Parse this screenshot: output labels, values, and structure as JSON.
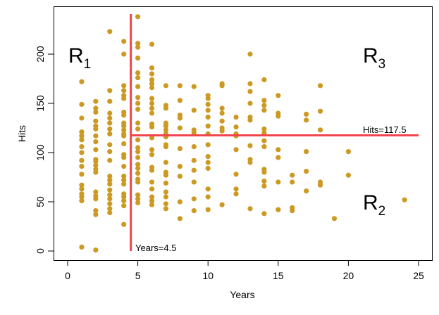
{
  "chart_data": {
    "type": "scatter",
    "title": "",
    "xlabel": "Years",
    "ylabel": "Hits",
    "xlim": [
      -1,
      26
    ],
    "ylim": [
      -8,
      250
    ],
    "xticks": [
      0,
      5,
      10,
      15,
      20,
      25
    ],
    "yticks": [
      0,
      50,
      100,
      150,
      200
    ],
    "xtick_labels": [
      "0",
      "5",
      "10",
      "15",
      "20",
      "25"
    ],
    "ytick_labels": [
      "0",
      "50",
      "100",
      "150",
      "200"
    ],
    "grid": false,
    "point_color": "#CC9A22",
    "split_color": "#F0454B",
    "splits": {
      "vertical": {
        "variable": "Years",
        "value": 4.5,
        "label": "Years=4.5"
      },
      "horizontal": {
        "variable": "Hits",
        "value": 117.5,
        "label": "Hits=117.5"
      }
    },
    "regions": [
      {
        "name": "R",
        "sub": "1"
      },
      {
        "name": "R",
        "sub": "2"
      },
      {
        "name": "R",
        "sub": "3"
      }
    ],
    "points": [
      [
        1,
        172
      ],
      [
        1,
        149
      ],
      [
        1,
        135
      ],
      [
        1,
        121
      ],
      [
        1,
        117
      ],
      [
        1,
        113
      ],
      [
        1,
        106
      ],
      [
        1,
        100
      ],
      [
        1,
        92
      ],
      [
        1,
        86
      ],
      [
        1,
        78
      ],
      [
        1,
        67
      ],
      [
        1,
        63
      ],
      [
        1,
        58
      ],
      [
        1,
        55
      ],
      [
        1,
        51
      ],
      [
        1,
        4
      ],
      [
        2,
        152
      ],
      [
        2,
        145
      ],
      [
        2,
        141
      ],
      [
        2,
        132
      ],
      [
        2,
        127
      ],
      [
        2,
        124
      ],
      [
        2,
        117
      ],
      [
        2,
        111
      ],
      [
        2,
        103
      ],
      [
        2,
        93
      ],
      [
        2,
        91
      ],
      [
        2,
        87
      ],
      [
        2,
        83
      ],
      [
        2,
        80
      ],
      [
        2,
        60
      ],
      [
        2,
        56
      ],
      [
        2,
        53
      ],
      [
        2,
        41
      ],
      [
        2,
        37
      ],
      [
        2,
        1
      ],
      [
        3,
        223
      ],
      [
        3,
        163
      ],
      [
        3,
        152
      ],
      [
        3,
        140
      ],
      [
        3,
        135
      ],
      [
        3,
        130
      ],
      [
        3,
        124
      ],
      [
        3,
        119
      ],
      [
        3,
        108
      ],
      [
        3,
        101
      ],
      [
        3,
        92
      ],
      [
        3,
        76
      ],
      [
        3,
        72
      ],
      [
        3,
        68
      ],
      [
        3,
        62
      ],
      [
        3,
        57
      ],
      [
        3,
        53
      ],
      [
        3,
        48
      ],
      [
        3,
        43
      ],
      [
        3,
        39
      ],
      [
        4,
        213
      ],
      [
        4,
        200
      ],
      [
        4,
        168
      ],
      [
        4,
        163
      ],
      [
        4,
        158
      ],
      [
        4,
        155
      ],
      [
        4,
        141
      ],
      [
        4,
        138
      ],
      [
        4,
        130
      ],
      [
        4,
        127
      ],
      [
        4,
        123
      ],
      [
        4,
        119
      ],
      [
        4,
        117
      ],
      [
        4,
        109
      ],
      [
        4,
        98
      ],
      [
        4,
        95
      ],
      [
        4,
        86
      ],
      [
        4,
        76
      ],
      [
        4,
        72
      ],
      [
        4,
        68
      ],
      [
        4,
        58
      ],
      [
        4,
        55
      ],
      [
        4,
        51
      ],
      [
        4,
        46
      ],
      [
        4,
        27
      ],
      [
        5,
        238
      ],
      [
        5,
        211
      ],
      [
        5,
        207
      ],
      [
        5,
        196
      ],
      [
        5,
        181
      ],
      [
        5,
        176
      ],
      [
        5,
        167
      ],
      [
        5,
        156
      ],
      [
        5,
        150
      ],
      [
        5,
        144
      ],
      [
        5,
        130
      ],
      [
        5,
        124
      ],
      [
        5,
        113
      ],
      [
        5,
        105
      ],
      [
        5,
        101
      ],
      [
        5,
        95
      ],
      [
        5,
        88
      ],
      [
        5,
        84
      ],
      [
        5,
        79
      ],
      [
        5,
        73
      ],
      [
        5,
        70
      ],
      [
        5,
        57
      ],
      [
        5,
        53
      ],
      [
        5,
        49
      ],
      [
        6,
        210
      ],
      [
        6,
        186
      ],
      [
        6,
        180
      ],
      [
        6,
        174
      ],
      [
        6,
        170
      ],
      [
        6,
        166
      ],
      [
        6,
        155
      ],
      [
        6,
        150
      ],
      [
        6,
        145
      ],
      [
        6,
        140
      ],
      [
        6,
        129
      ],
      [
        6,
        126
      ],
      [
        6,
        115
      ],
      [
        6,
        103
      ],
      [
        6,
        98
      ],
      [
        6,
        85
      ],
      [
        6,
        82
      ],
      [
        6,
        70
      ],
      [
        6,
        63
      ],
      [
        6,
        55
      ],
      [
        6,
        51
      ],
      [
        6,
        47
      ],
      [
        7,
        168
      ],
      [
        7,
        148
      ],
      [
        7,
        145
      ],
      [
        7,
        130
      ],
      [
        7,
        127
      ],
      [
        7,
        123
      ],
      [
        7,
        119
      ],
      [
        7,
        116
      ],
      [
        7,
        108
      ],
      [
        7,
        106
      ],
      [
        7,
        90
      ],
      [
        7,
        80
      ],
      [
        7,
        77
      ],
      [
        7,
        69
      ],
      [
        7,
        60
      ],
      [
        7,
        55
      ],
      [
        7,
        48
      ],
      [
        7,
        43
      ],
      [
        8,
        168
      ],
      [
        8,
        153
      ],
      [
        8,
        138
      ],
      [
        8,
        135
      ],
      [
        8,
        125
      ],
      [
        8,
        104
      ],
      [
        8,
        86
      ],
      [
        8,
        76
      ],
      [
        8,
        50
      ],
      [
        8,
        33
      ],
      [
        9,
        167
      ],
      [
        9,
        143
      ],
      [
        9,
        123
      ],
      [
        9,
        120
      ],
      [
        9,
        106
      ],
      [
        9,
        92
      ],
      [
        9,
        82
      ],
      [
        9,
        70
      ],
      [
        9,
        53
      ],
      [
        9,
        41
      ],
      [
        10,
        158
      ],
      [
        10,
        155
      ],
      [
        10,
        149
      ],
      [
        10,
        143
      ],
      [
        10,
        136
      ],
      [
        10,
        127
      ],
      [
        10,
        119
      ],
      [
        10,
        108
      ],
      [
        10,
        96
      ],
      [
        10,
        90
      ],
      [
        10,
        84
      ],
      [
        10,
        63
      ],
      [
        10,
        55
      ],
      [
        10,
        42
      ],
      [
        11,
        170
      ],
      [
        11,
        168
      ],
      [
        11,
        145
      ],
      [
        11,
        140
      ],
      [
        11,
        132
      ],
      [
        11,
        125
      ],
      [
        11,
        122
      ],
      [
        11,
        47
      ],
      [
        12,
        136
      ],
      [
        12,
        126
      ],
      [
        12,
        119
      ],
      [
        12,
        117
      ],
      [
        12,
        103
      ],
      [
        12,
        78
      ],
      [
        12,
        63
      ],
      [
        12,
        58
      ],
      [
        13,
        200
      ],
      [
        13,
        170
      ],
      [
        13,
        162
      ],
      [
        13,
        150
      ],
      [
        13,
        136
      ],
      [
        13,
        133
      ],
      [
        13,
        107
      ],
      [
        13,
        93
      ],
      [
        13,
        90
      ],
      [
        13,
        43
      ],
      [
        14,
        174
      ],
      [
        14,
        153
      ],
      [
        14,
        148
      ],
      [
        14,
        143
      ],
      [
        14,
        124
      ],
      [
        14,
        120
      ],
      [
        14,
        112
      ],
      [
        14,
        106
      ],
      [
        14,
        83
      ],
      [
        14,
        80
      ],
      [
        14,
        71
      ],
      [
        14,
        66
      ],
      [
        14,
        38
      ],
      [
        15,
        158
      ],
      [
        15,
        140
      ],
      [
        15,
        137
      ],
      [
        15,
        103
      ],
      [
        15,
        95
      ],
      [
        15,
        70
      ],
      [
        15,
        42
      ],
      [
        16,
        77
      ],
      [
        16,
        70
      ],
      [
        16,
        44
      ],
      [
        16,
        41
      ],
      [
        17,
        139
      ],
      [
        17,
        133
      ],
      [
        17,
        101
      ],
      [
        17,
        81
      ],
      [
        17,
        61
      ],
      [
        18,
        168
      ],
      [
        18,
        142
      ],
      [
        18,
        123
      ],
      [
        18,
        70
      ],
      [
        18,
        67
      ],
      [
        19,
        33
      ],
      [
        20,
        101
      ],
      [
        20,
        77
      ],
      [
        24,
        52
      ]
    ]
  }
}
